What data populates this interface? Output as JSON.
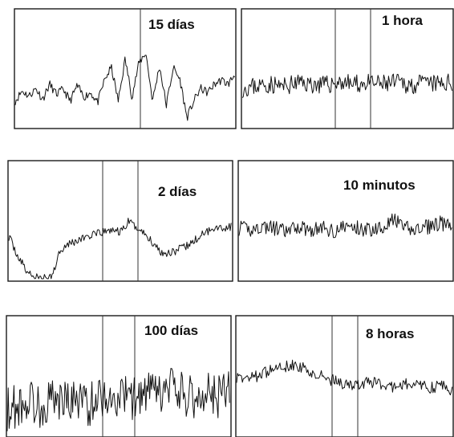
{
  "colors": {
    "frame": "#1a1a1a",
    "trace": "#111111",
    "marker": "#333333",
    "background": "#ffffff"
  },
  "chart_data": [
    {
      "type": "line",
      "title": "",
      "label": "15 días",
      "xlabel": "",
      "ylabel": "",
      "grid": false,
      "trend": [
        0.3,
        0.42,
        0.36,
        0.45,
        0.32,
        0.5,
        0.38,
        0.44,
        0.3,
        0.48,
        0.35,
        0.4,
        0.28,
        0.55,
        0.7,
        0.3,
        0.8,
        0.35,
        0.75,
        0.88,
        0.3,
        0.72,
        0.25,
        0.7,
        0.55,
        0.1,
        0.3,
        0.45,
        0.4,
        0.5,
        0.55,
        0.5,
        0.62
      ],
      "noise": 0.05,
      "seed": 11
    },
    {
      "type": "line",
      "title": "",
      "label": "1 hora",
      "xlabel": "",
      "ylabel": "",
      "grid": false,
      "trend": [
        0.45,
        0.48,
        0.5,
        0.47,
        0.52,
        0.5,
        0.49,
        0.53,
        0.5,
        0.51,
        0.5,
        0.52,
        0.49,
        0.51,
        0.5,
        0.52
      ],
      "noise": 0.11,
      "seed": 23
    },
    {
      "type": "line",
      "title": "",
      "label": "2 días",
      "xlabel": "",
      "ylabel": "",
      "grid": false,
      "trend": [
        0.5,
        0.28,
        0.1,
        0.02,
        0.0,
        0.02,
        0.35,
        0.42,
        0.45,
        0.5,
        0.52,
        0.55,
        0.58,
        0.55,
        0.68,
        0.6,
        0.52,
        0.4,
        0.3,
        0.32,
        0.35,
        0.4,
        0.48,
        0.55,
        0.62,
        0.6,
        0.62
      ],
      "noise": 0.05,
      "seed": 37
    },
    {
      "type": "line",
      "title": "",
      "label": "10 minutos",
      "xlabel": "",
      "ylabel": "",
      "grid": false,
      "trend": [
        0.6,
        0.58,
        0.62,
        0.6,
        0.55,
        0.62,
        0.58,
        0.6,
        0.57,
        0.62,
        0.6,
        0.58,
        0.62,
        0.7,
        0.6,
        0.58,
        0.62,
        0.66,
        0.6
      ],
      "noise": 0.09,
      "seed": 41
    },
    {
      "type": "line",
      "title": "",
      "label": "100 días",
      "xlabel": "",
      "ylabel": "",
      "grid": false,
      "trend": [
        0.3,
        0.35,
        0.4,
        0.32,
        0.45,
        0.38,
        0.42,
        0.35,
        0.48,
        0.4,
        0.45,
        0.42,
        0.5,
        0.45,
        0.55,
        0.48,
        0.42,
        0.5,
        0.45,
        0.55
      ],
      "noise": 0.26,
      "seed": 53
    },
    {
      "type": "line",
      "title": "",
      "label": "8 horas",
      "xlabel": "",
      "ylabel": "",
      "grid": false,
      "trend": [
        0.68,
        0.65,
        0.7,
        0.75,
        0.8,
        0.82,
        0.78,
        0.72,
        0.65,
        0.62,
        0.58,
        0.6,
        0.62,
        0.58,
        0.55,
        0.6,
        0.58,
        0.55,
        0.58,
        0.52
      ],
      "noise": 0.07,
      "seed": 67
    }
  ]
}
